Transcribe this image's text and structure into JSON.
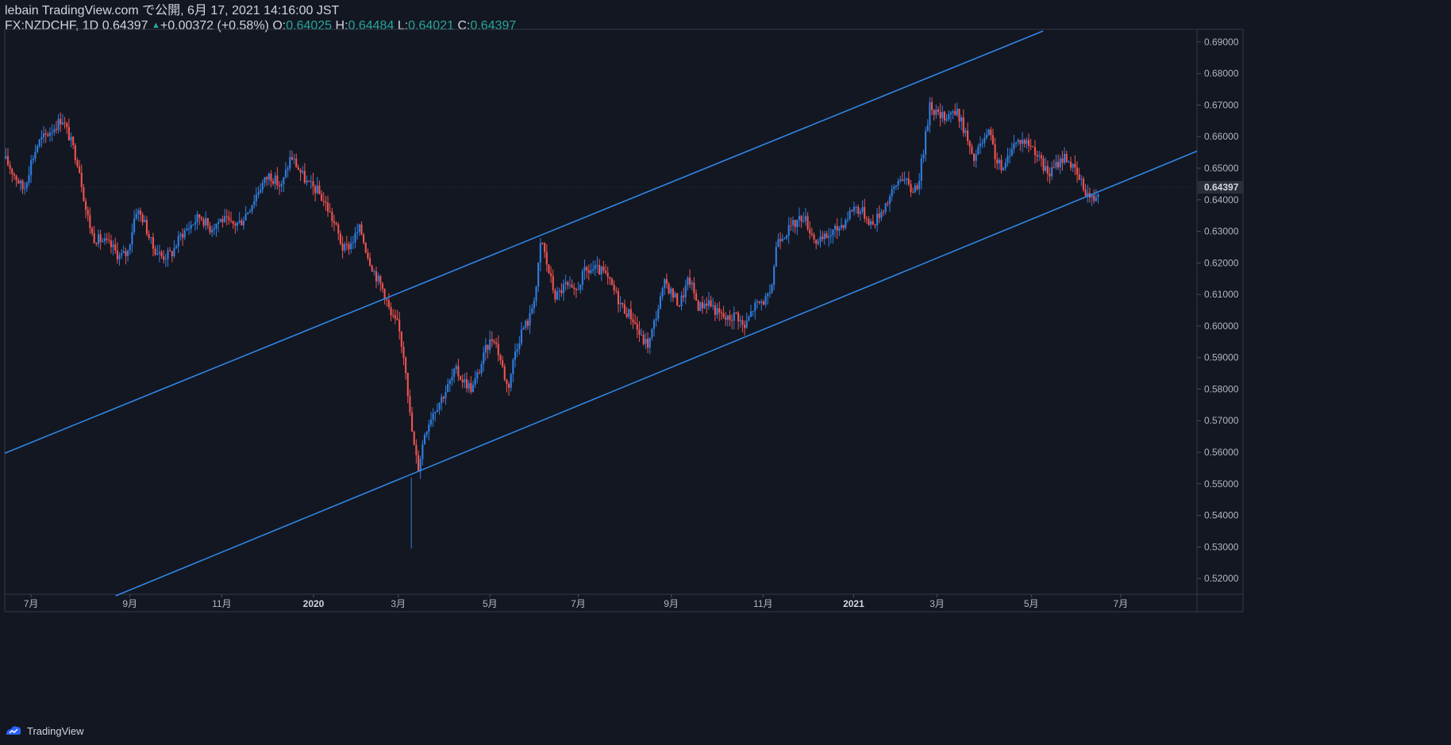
{
  "header": {
    "publish_line": "lebain TradingView.com で公開, 6月 17, 2021 14:16:00 JST",
    "symbol": "FX:NZDCHF, 1D",
    "last": "0.64397",
    "change": "+0.00372 (+0.58%)",
    "o_label": "O:",
    "o_val": "0.64025",
    "h_label": "H:",
    "h_val": "0.64484",
    "l_label": "L:",
    "l_val": "0.64021",
    "c_label": "C:",
    "c_val": "0.64397"
  },
  "footer": {
    "brand": "TradingView"
  },
  "colors": {
    "background": "#131722",
    "up": "#2f7ee0",
    "down": "#ef5350",
    "trendline": "#2f86e6",
    "grid": "#2a2e39",
    "text": "#b2b5be"
  },
  "chart_data": {
    "type": "candlestick",
    "symbol": "FX:NZDCHF",
    "interval": "1D",
    "ylim": [
      0.515,
      0.694
    ],
    "y_ticks": [
      "0.69000",
      "0.68000",
      "0.67000",
      "0.66000",
      "0.65000",
      "0.64000",
      "0.63000",
      "0.62000",
      "0.61000",
      "0.60000",
      "0.59000",
      "0.58000",
      "0.57000",
      "0.56000",
      "0.55000",
      "0.54000",
      "0.53000",
      "0.52000"
    ],
    "last_price_label": "0.64397",
    "last_price": 0.64397,
    "x_ticks": [
      {
        "label": "7月",
        "t": 0.022
      },
      {
        "label": "9月",
        "t": 0.105
      },
      {
        "label": "11月",
        "t": 0.182
      },
      {
        "label": "2020",
        "t": 0.259,
        "bold": true
      },
      {
        "label": "3月",
        "t": 0.33
      },
      {
        "label": "5月",
        "t": 0.407
      },
      {
        "label": "7月",
        "t": 0.481
      },
      {
        "label": "9月",
        "t": 0.559
      },
      {
        "label": "11月",
        "t": 0.636
      },
      {
        "label": "2021",
        "t": 0.712,
        "bold": true
      },
      {
        "label": "3月",
        "t": 0.782
      },
      {
        "label": "5月",
        "t": 0.861
      },
      {
        "label": "7月",
        "t": 0.936
      }
    ],
    "price_path": [
      [
        0.0,
        0.653
      ],
      [
        0.008,
        0.648
      ],
      [
        0.016,
        0.643
      ],
      [
        0.022,
        0.652
      ],
      [
        0.028,
        0.658
      ],
      [
        0.036,
        0.661
      ],
      [
        0.044,
        0.664
      ],
      [
        0.048,
        0.666
      ],
      [
        0.055,
        0.659
      ],
      [
        0.062,
        0.651
      ],
      [
        0.068,
        0.637
      ],
      [
        0.074,
        0.628
      ],
      [
        0.082,
        0.627
      ],
      [
        0.09,
        0.625
      ],
      [
        0.096,
        0.622
      ],
      [
        0.103,
        0.623
      ],
      [
        0.11,
        0.637
      ],
      [
        0.116,
        0.634
      ],
      [
        0.124,
        0.625
      ],
      [
        0.132,
        0.622
      ],
      [
        0.14,
        0.623
      ],
      [
        0.148,
        0.629
      ],
      [
        0.156,
        0.632
      ],
      [
        0.164,
        0.635
      ],
      [
        0.172,
        0.631
      ],
      [
        0.182,
        0.634
      ],
      [
        0.19,
        0.632
      ],
      [
        0.198,
        0.633
      ],
      [
        0.206,
        0.638
      ],
      [
        0.214,
        0.644
      ],
      [
        0.222,
        0.648
      ],
      [
        0.232,
        0.644
      ],
      [
        0.24,
        0.654
      ],
      [
        0.246,
        0.65
      ],
      [
        0.254,
        0.645
      ],
      [
        0.262,
        0.643
      ],
      [
        0.27,
        0.638
      ],
      [
        0.278,
        0.631
      ],
      [
        0.284,
        0.624
      ],
      [
        0.29,
        0.626
      ],
      [
        0.298,
        0.631
      ],
      [
        0.304,
        0.623
      ],
      [
        0.31,
        0.617
      ],
      [
        0.318,
        0.611
      ],
      [
        0.324,
        0.603
      ],
      [
        0.33,
        0.6
      ],
      [
        0.336,
        0.588
      ],
      [
        0.34,
        0.571
      ],
      [
        0.344,
        0.56
      ],
      [
        0.347,
        0.555
      ],
      [
        0.352,
        0.566
      ],
      [
        0.358,
        0.572
      ],
      [
        0.366,
        0.577
      ],
      [
        0.372,
        0.581
      ],
      [
        0.378,
        0.586
      ],
      [
        0.384,
        0.583
      ],
      [
        0.392,
        0.58
      ],
      [
        0.398,
        0.586
      ],
      [
        0.404,
        0.593
      ],
      [
        0.41,
        0.597
      ],
      [
        0.416,
        0.589
      ],
      [
        0.422,
        0.58
      ],
      [
        0.428,
        0.592
      ],
      [
        0.434,
        0.599
      ],
      [
        0.44,
        0.602
      ],
      [
        0.446,
        0.613
      ],
      [
        0.45,
        0.628
      ],
      [
        0.455,
        0.619
      ],
      [
        0.462,
        0.609
      ],
      [
        0.47,
        0.613
      ],
      [
        0.478,
        0.61
      ],
      [
        0.486,
        0.617
      ],
      [
        0.494,
        0.618
      ],
      [
        0.502,
        0.617
      ],
      [
        0.51,
        0.612
      ],
      [
        0.518,
        0.606
      ],
      [
        0.526,
        0.603
      ],
      [
        0.534,
        0.596
      ],
      [
        0.54,
        0.594
      ],
      [
        0.546,
        0.603
      ],
      [
        0.554,
        0.614
      ],
      [
        0.56,
        0.61
      ],
      [
        0.566,
        0.607
      ],
      [
        0.574,
        0.615
      ],
      [
        0.582,
        0.606
      ],
      [
        0.59,
        0.608
      ],
      [
        0.598,
        0.604
      ],
      [
        0.606,
        0.602
      ],
      [
        0.614,
        0.604
      ],
      [
        0.62,
        0.599
      ],
      [
        0.628,
        0.606
      ],
      [
        0.636,
        0.608
      ],
      [
        0.642,
        0.609
      ],
      [
        0.648,
        0.628
      ],
      [
        0.656,
        0.63
      ],
      [
        0.664,
        0.633
      ],
      [
        0.67,
        0.635
      ],
      [
        0.676,
        0.63
      ],
      [
        0.682,
        0.626
      ],
      [
        0.688,
        0.628
      ],
      [
        0.696,
        0.63
      ],
      [
        0.704,
        0.633
      ],
      [
        0.712,
        0.638
      ],
      [
        0.72,
        0.636
      ],
      [
        0.728,
        0.632
      ],
      [
        0.736,
        0.637
      ],
      [
        0.744,
        0.642
      ],
      [
        0.752,
        0.648
      ],
      [
        0.76,
        0.643
      ],
      [
        0.766,
        0.645
      ],
      [
        0.772,
        0.659
      ],
      [
        0.776,
        0.671
      ],
      [
        0.78,
        0.668
      ],
      [
        0.786,
        0.666
      ],
      [
        0.794,
        0.668
      ],
      [
        0.8,
        0.667
      ],
      [
        0.806,
        0.661
      ],
      [
        0.812,
        0.652
      ],
      [
        0.818,
        0.657
      ],
      [
        0.826,
        0.661
      ],
      [
        0.832,
        0.652
      ],
      [
        0.838,
        0.649
      ],
      [
        0.844,
        0.657
      ],
      [
        0.852,
        0.659
      ],
      [
        0.858,
        0.658
      ],
      [
        0.864,
        0.656
      ],
      [
        0.87,
        0.651
      ],
      [
        0.876,
        0.648
      ],
      [
        0.884,
        0.652
      ],
      [
        0.89,
        0.654
      ],
      [
        0.896,
        0.65
      ],
      [
        0.902,
        0.646
      ],
      [
        0.908,
        0.642
      ],
      [
        0.913,
        0.64
      ],
      [
        0.918,
        0.644
      ]
    ],
    "trendlines": [
      {
        "from": [
          0.0,
          0.5597
        ],
        "to": [
          0.871,
          0.6935
        ]
      },
      {
        "from": [
          0.093,
          0.5145
        ],
        "to": [
          1.0,
          0.6554
        ]
      }
    ]
  }
}
